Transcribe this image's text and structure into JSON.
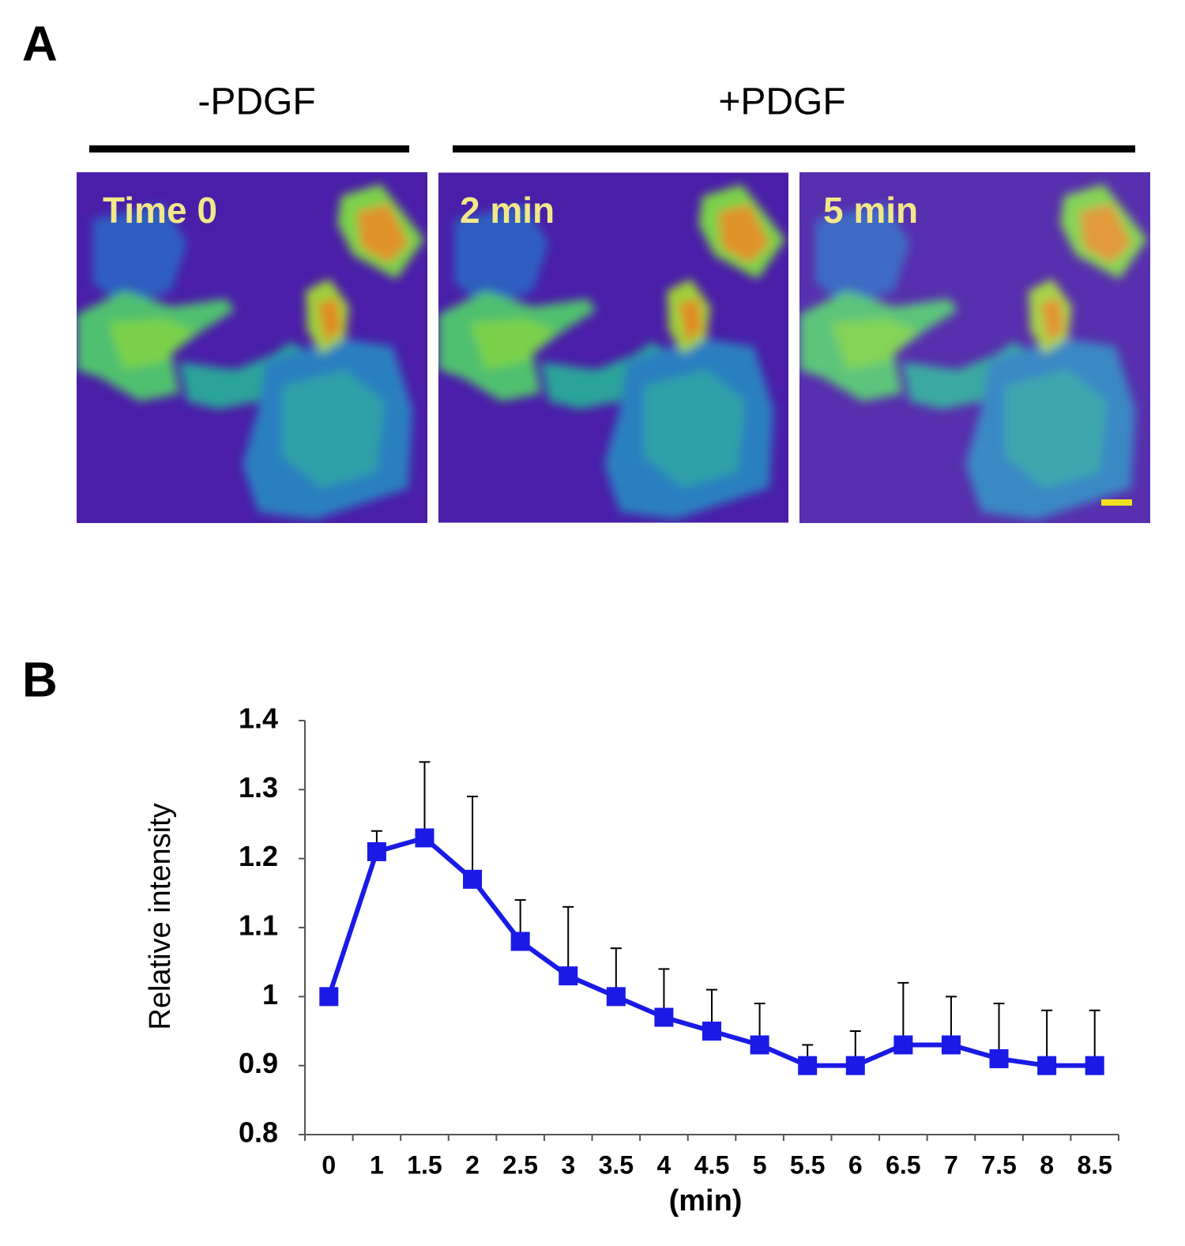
{
  "figure": {
    "panel_a": {
      "label": "A",
      "left_condition": "-PDGF",
      "right_condition": "+PDGF",
      "panels": [
        "Time 0",
        "2 min",
        "5 min"
      ]
    },
    "panel_b": {
      "label": "B"
    }
  },
  "chart_data": {
    "type": "line",
    "y_label": "Relative intensity",
    "x_label": "(min)",
    "categories": [
      "0",
      "1",
      "1.5",
      "2",
      "2.5",
      "3",
      "3.5",
      "4",
      "4.5",
      "5",
      "5.5",
      "6",
      "6.5",
      "7",
      "7.5",
      "8",
      "8.5"
    ],
    "values": [
      1.0,
      1.21,
      1.23,
      1.17,
      1.08,
      1.03,
      1.0,
      0.97,
      0.95,
      0.93,
      0.9,
      0.9,
      0.93,
      0.93,
      0.91,
      0.9,
      0.9
    ],
    "errors": [
      null,
      0.03,
      0.11,
      0.12,
      0.06,
      0.1,
      0.07,
      0.07,
      0.06,
      0.06,
      0.03,
      0.05,
      0.09,
      0.07,
      0.08,
      0.08,
      0.08
    ],
    "color": "#1a1ae6",
    "ylim": [
      0.8,
      1.4
    ],
    "yticks": [
      0.8,
      0.9,
      1,
      1.1,
      1.2,
      1.3,
      1.4
    ]
  }
}
